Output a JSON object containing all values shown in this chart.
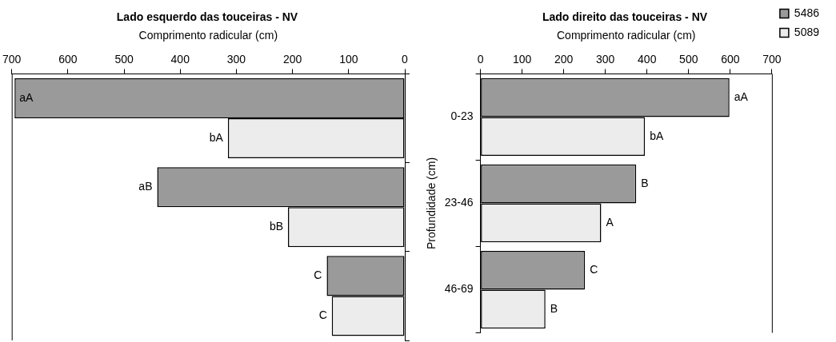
{
  "chart_data": [
    {
      "type": "bar",
      "orientation": "horizontal",
      "title": "Lado esquerdo das touceiras - NV",
      "xlabel": "Comprimento radicular (cm)",
      "categories": [
        null,
        null,
        null
      ],
      "xlim": [
        700,
        0
      ],
      "xticks": [
        700,
        600,
        500,
        400,
        300,
        200,
        100,
        0
      ],
      "tick_labels": "x",
      "grid": false,
      "legend": false,
      "series": [
        {
          "color": "#9a9a9a",
          "values": [
            695,
            441,
            139
          ],
          "value_labels": [
            "aA",
            "aB",
            "C"
          ]
        },
        {
          "color": "#ececec",
          "values": [
            315,
            208,
            130
          ],
          "value_labels": [
            "bA",
            "bB",
            "C"
          ]
        }
      ]
    },
    {
      "type": "bar",
      "orientation": "horizontal",
      "title": "Lado direito das touceiras - NV",
      "xlabel": "Comprimento radicular (cm)",
      "ylabel": "Profundidade (cm)",
      "categories": [
        "0-23",
        "23-46",
        "46-69"
      ],
      "xlim": [
        0,
        700
      ],
      "xticks": [
        0,
        100,
        200,
        300,
        400,
        500,
        600,
        700
      ],
      "grid": false,
      "legend": "right",
      "series": [
        {
          "name": "5486",
          "color": "#9a9a9a",
          "values": [
            598,
            374,
            251
          ],
          "value_labels": [
            "aA",
            "B",
            "C"
          ]
        },
        {
          "name": "5089",
          "color": "#ececec",
          "values": [
            395,
            290,
            156
          ],
          "value_labels": [
            "bA",
            "A",
            "B"
          ]
        }
      ]
    }
  ]
}
